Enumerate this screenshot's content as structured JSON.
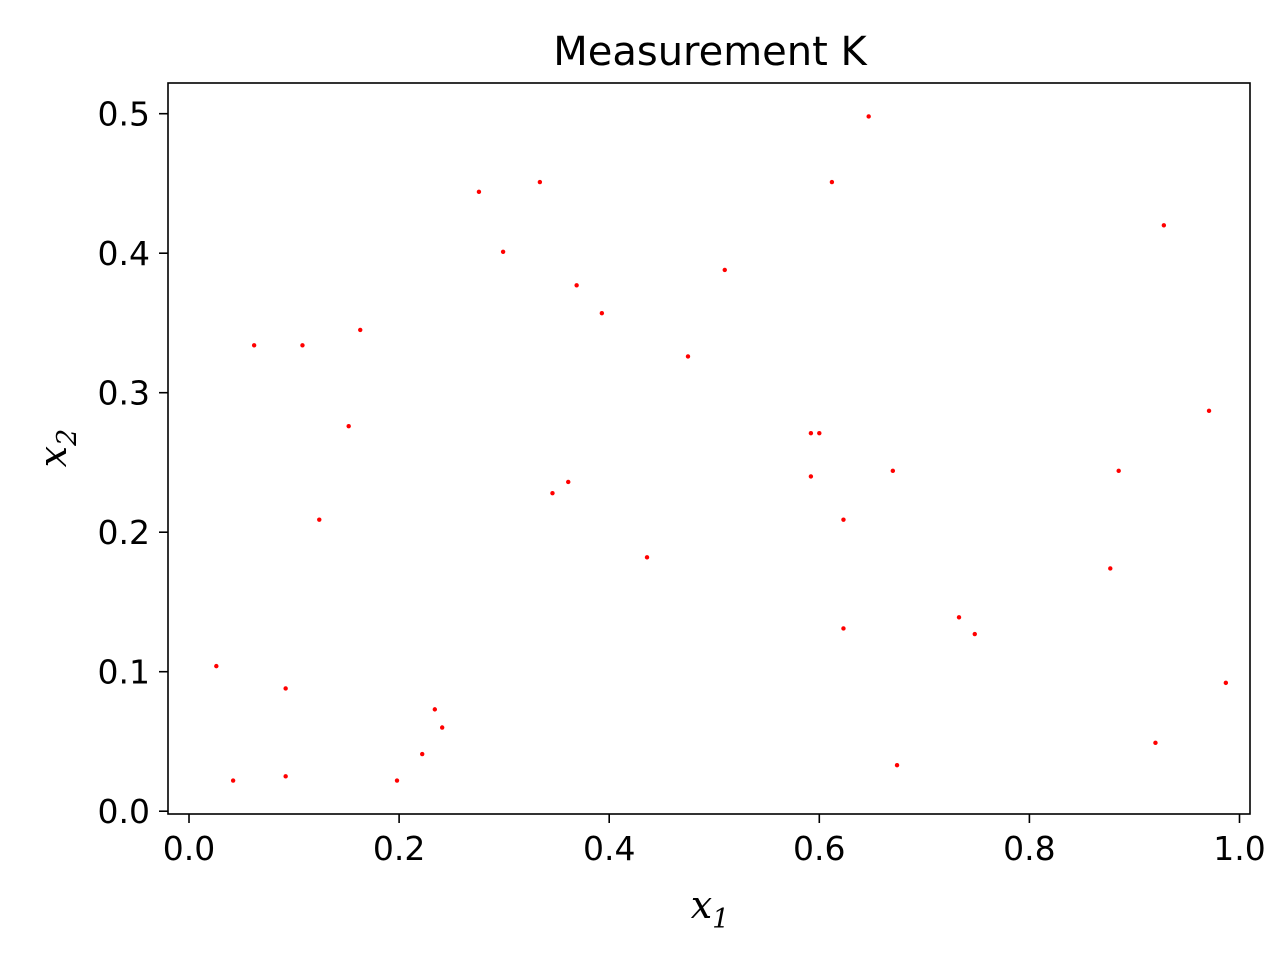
{
  "chart_data": {
    "type": "scatter",
    "title": "Measurement K",
    "xlabel": {
      "base": "x",
      "sub": "1"
    },
    "ylabel": {
      "base": "x",
      "sub": "2"
    },
    "xlim": [
      -0.02,
      1.01
    ],
    "ylim": [
      -0.002,
      0.522
    ],
    "xticks": [
      0.0,
      0.2,
      0.4,
      0.6,
      0.8,
      1.0
    ],
    "xtick_labels": [
      "0.0",
      "0.2",
      "0.4",
      "0.6",
      "0.8",
      "1.0"
    ],
    "yticks": [
      0.0,
      0.1,
      0.2,
      0.3,
      0.4,
      0.5
    ],
    "ytick_labels": [
      "0.0",
      "0.1",
      "0.2",
      "0.3",
      "0.4",
      "0.5"
    ],
    "grid": false,
    "marker_color": "#ff0000",
    "points": [
      {
        "x": 0.026,
        "y": 0.104
      },
      {
        "x": 0.042,
        "y": 0.022
      },
      {
        "x": 0.062,
        "y": 0.334
      },
      {
        "x": 0.092,
        "y": 0.088
      },
      {
        "x": 0.092,
        "y": 0.025
      },
      {
        "x": 0.108,
        "y": 0.334
      },
      {
        "x": 0.124,
        "y": 0.209
      },
      {
        "x": 0.152,
        "y": 0.276
      },
      {
        "x": 0.163,
        "y": 0.345
      },
      {
        "x": 0.198,
        "y": 0.022
      },
      {
        "x": 0.222,
        "y": 0.041
      },
      {
        "x": 0.234,
        "y": 0.073
      },
      {
        "x": 0.241,
        "y": 0.06
      },
      {
        "x": 0.276,
        "y": 0.444
      },
      {
        "x": 0.299,
        "y": 0.401
      },
      {
        "x": 0.334,
        "y": 0.451
      },
      {
        "x": 0.346,
        "y": 0.228
      },
      {
        "x": 0.361,
        "y": 0.236
      },
      {
        "x": 0.369,
        "y": 0.377
      },
      {
        "x": 0.393,
        "y": 0.357
      },
      {
        "x": 0.436,
        "y": 0.182
      },
      {
        "x": 0.475,
        "y": 0.326
      },
      {
        "x": 0.51,
        "y": 0.388
      },
      {
        "x": 0.592,
        "y": 0.271
      },
      {
        "x": 0.6,
        "y": 0.271
      },
      {
        "x": 0.592,
        "y": 0.24
      },
      {
        "x": 0.612,
        "y": 0.451
      },
      {
        "x": 0.623,
        "y": 0.209
      },
      {
        "x": 0.623,
        "y": 0.131
      },
      {
        "x": 0.647,
        "y": 0.498
      },
      {
        "x": 0.67,
        "y": 0.244
      },
      {
        "x": 0.674,
        "y": 0.033
      },
      {
        "x": 0.733,
        "y": 0.139
      },
      {
        "x": 0.748,
        "y": 0.127
      },
      {
        "x": 0.877,
        "y": 0.174
      },
      {
        "x": 0.885,
        "y": 0.244
      },
      {
        "x": 0.92,
        "y": 0.049
      },
      {
        "x": 0.928,
        "y": 0.42
      },
      {
        "x": 0.971,
        "y": 0.287
      },
      {
        "x": 0.987,
        "y": 0.092
      }
    ]
  }
}
